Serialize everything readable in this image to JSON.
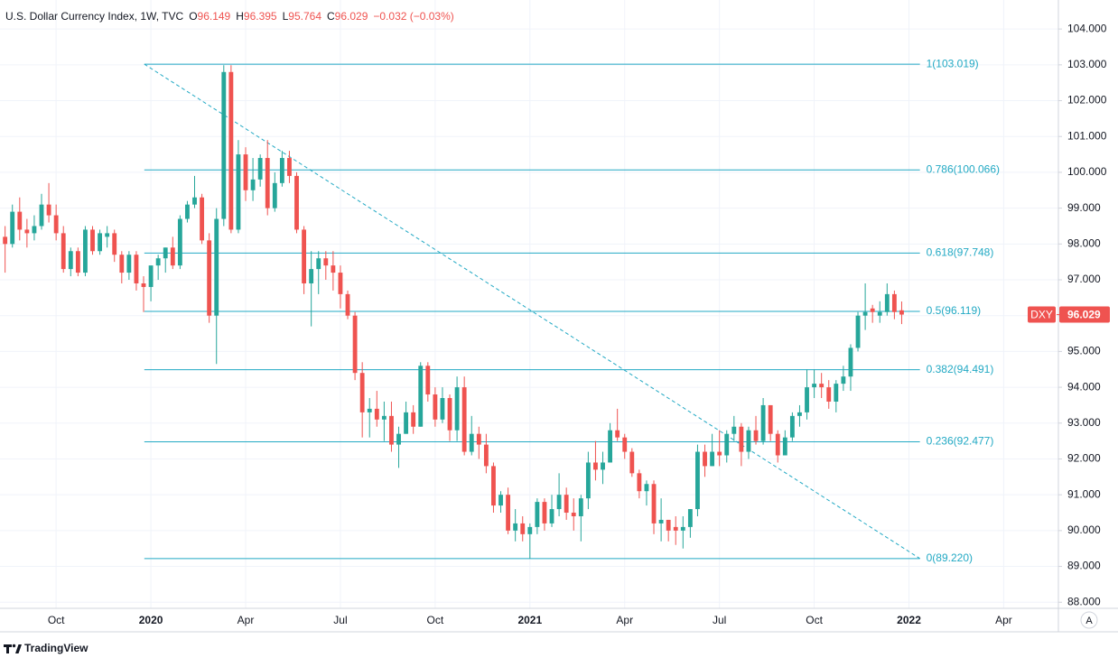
{
  "chart_data": {
    "type": "candlestick",
    "title": "U.S. Dollar Currency Index, 1W, TVC",
    "ohlc_prefixes": [
      "O",
      "H",
      "L",
      "C"
    ],
    "change_label": "−0.032 (−0.03%)",
    "symbol": "DXY",
    "up_color": "#26a69a",
    "down_color": "#ef5350",
    "fib_color": "#22a9c4",
    "grid": true,
    "open": [
      98.2,
      98.0,
      98.9,
      98.4,
      98.3,
      98.5,
      99.1,
      98.8,
      98.3,
      97.3,
      97.8,
      97.2,
      98.4,
      97.8,
      98.2,
      98.3,
      97.7,
      97.2,
      97.7,
      96.9,
      96.8,
      97.4,
      97.6,
      97.9,
      97.4,
      98.7,
      99.1,
      99.3,
      98.1,
      96.0,
      98.7,
      102.8,
      98.4,
      100.5,
      99.5,
      99.8,
      100.4,
      99.0,
      99.7,
      100.4,
      99.9,
      98.4,
      96.9,
      97.3,
      97.6,
      97.4,
      97.2,
      96.6,
      96.0,
      94.4,
      93.3,
      93.4,
      93.1,
      93.2,
      92.4,
      92.7,
      93.3,
      92.9,
      94.6,
      93.8,
      93.1,
      93.7,
      92.8,
      94.0,
      92.2,
      92.7,
      92.4,
      91.8,
      90.7,
      91.0,
      90.0,
      90.2,
      89.9,
      90.1,
      90.8,
      90.2,
      90.6,
      91.0,
      90.5,
      90.4,
      90.9,
      91.9,
      91.7,
      91.9,
      92.8,
      92.6,
      92.2,
      91.6,
      91.1,
      91.3,
      90.2,
      90.3,
      90.1,
      90.0,
      90.1,
      90.6,
      92.2,
      91.8,
      92.2,
      92.1,
      92.7,
      92.9,
      92.2,
      92.8,
      92.5,
      93.5,
      92.7,
      92.1,
      92.6,
      93.2,
      93.3,
      94.0,
      94.1,
      94.0,
      93.6,
      94.1,
      94.3,
      95.1,
      96.0,
      96.2,
      96.0,
      96.1,
      96.6,
      96.149
    ],
    "high": [
      98.5,
      99.1,
      99.3,
      98.7,
      98.8,
      99.4,
      99.7,
      99.1,
      98.5,
      97.9,
      97.9,
      98.5,
      98.5,
      98.4,
      98.5,
      98.4,
      97.8,
      97.8,
      97.8,
      97.1,
      97.4,
      97.7,
      97.9,
      98.2,
      98.8,
      99.2,
      99.9,
      99.4,
      98.3,
      99.0,
      102.99,
      102.99,
      100.9,
      100.7,
      100.4,
      100.5,
      100.9,
      100.0,
      100.6,
      100.6,
      100.0,
      98.5,
      97.8,
      97.8,
      97.8,
      97.8,
      97.4,
      96.7,
      96.1,
      94.7,
      93.7,
      93.9,
      93.6,
      93.6,
      92.9,
      93.6,
      93.5,
      94.7,
      94.7,
      94.0,
      94.0,
      93.8,
      94.3,
      94.3,
      93.2,
      92.9,
      92.7,
      91.9,
      91.1,
      91.2,
      90.6,
      90.4,
      90.2,
      90.9,
      90.9,
      91.0,
      91.6,
      91.2,
      90.9,
      91.0,
      92.2,
      92.5,
      92.2,
      93.0,
      93.4,
      92.7,
      92.3,
      91.7,
      91.4,
      91.4,
      90.9,
      90.3,
      90.4,
      90.4,
      90.6,
      92.4,
      92.4,
      92.7,
      92.8,
      92.8,
      93.2,
      93.0,
      92.9,
      93.2,
      93.7,
      93.5,
      92.8,
      92.8,
      93.3,
      93.5,
      94.5,
      94.5,
      94.4,
      94.2,
      94.2,
      94.6,
      95.2,
      96.1,
      96.9,
      96.3,
      96.4,
      96.9,
      96.7,
      96.395
    ],
    "low": [
      97.2,
      97.9,
      98.1,
      97.9,
      98.1,
      98.4,
      98.6,
      98.1,
      97.2,
      97.1,
      97.1,
      97.1,
      97.7,
      97.7,
      97.9,
      97.5,
      96.9,
      97.0,
      96.7,
      96.1,
      96.4,
      97.0,
      97.2,
      97.3,
      97.3,
      98.6,
      99.0,
      98.0,
      95.8,
      94.65,
      98.5,
      98.3,
      98.3,
      99.2,
      99.2,
      99.6,
      98.8,
      98.9,
      99.6,
      99.7,
      98.3,
      96.6,
      95.7,
      96.6,
      97.0,
      96.7,
      96.2,
      95.9,
      94.2,
      92.6,
      92.6,
      92.9,
      92.5,
      92.2,
      91.75,
      92.7,
      92.7,
      92.9,
      93.6,
      92.9,
      93.0,
      92.5,
      92.5,
      92.1,
      92.1,
      92.0,
      91.6,
      90.5,
      90.5,
      89.9,
      89.7,
      89.7,
      89.22,
      89.9,
      90.0,
      90.1,
      90.4,
      90.3,
      90.0,
      89.7,
      90.6,
      91.4,
      91.3,
      91.9,
      92.5,
      92.0,
      91.5,
      90.9,
      90.7,
      89.9,
      89.7,
      89.7,
      89.6,
      89.5,
      89.8,
      90.4,
      91.5,
      91.8,
      91.8,
      91.9,
      92.5,
      91.8,
      92.0,
      92.4,
      92.4,
      92.5,
      91.9,
      92.1,
      92.5,
      92.9,
      93.1,
      93.7,
      93.7,
      93.4,
      93.3,
      93.9,
      93.9,
      95.0,
      95.6,
      95.8,
      95.8,
      96.0,
      95.9,
      95.764
    ],
    "close": [
      98.0,
      98.9,
      98.4,
      98.3,
      98.5,
      99.1,
      98.8,
      98.3,
      97.3,
      97.8,
      97.2,
      98.4,
      97.8,
      98.3,
      98.3,
      97.7,
      97.2,
      97.7,
      96.9,
      96.8,
      97.4,
      97.6,
      97.9,
      97.4,
      98.7,
      99.1,
      99.3,
      98.1,
      96.0,
      98.7,
      102.8,
      98.4,
      100.5,
      99.5,
      99.8,
      100.4,
      99.0,
      99.7,
      100.4,
      99.9,
      98.4,
      96.9,
      97.3,
      97.6,
      97.4,
      97.2,
      96.6,
      96.0,
      94.4,
      93.3,
      93.4,
      93.1,
      93.2,
      92.4,
      92.7,
      93.3,
      92.9,
      94.6,
      93.8,
      93.1,
      93.7,
      92.8,
      94.0,
      92.2,
      92.7,
      92.4,
      91.8,
      90.7,
      91.0,
      90.0,
      90.2,
      89.9,
      90.1,
      90.8,
      90.2,
      90.6,
      91.0,
      90.5,
      90.4,
      90.9,
      91.9,
      91.7,
      91.9,
      92.8,
      92.6,
      92.2,
      91.6,
      91.1,
      91.3,
      90.2,
      90.3,
      90.0,
      90.0,
      90.1,
      90.6,
      92.2,
      91.8,
      92.2,
      92.1,
      92.7,
      92.9,
      92.2,
      92.8,
      92.5,
      93.5,
      92.7,
      92.1,
      92.6,
      93.2,
      93.3,
      94.0,
      94.1,
      94.0,
      93.6,
      94.1,
      94.3,
      95.1,
      96.0,
      96.1,
      96.1,
      96.1,
      96.6,
      96.1,
      96.029
    ],
    "xlim": [
      -0.7,
      144.5
    ],
    "xticks": [
      {
        "value": 7,
        "label": "Oct"
      },
      {
        "value": 20,
        "label": "2020"
      },
      {
        "value": 33,
        "label": "Apr"
      },
      {
        "value": 46,
        "label": "Jul"
      },
      {
        "value": 59,
        "label": "Oct"
      },
      {
        "value": 72,
        "label": "2021"
      },
      {
        "value": 85,
        "label": "Apr"
      },
      {
        "value": 98,
        "label": "Jul"
      },
      {
        "value": 111,
        "label": "Oct"
      },
      {
        "value": 124,
        "label": "2022"
      },
      {
        "value": 137,
        "label": "Apr"
      }
    ],
    "ylim": [
      87.83,
      104.81
    ],
    "yticks": [
      {
        "value": 88,
        "label": "88.000"
      },
      {
        "value": 89,
        "label": "89.000"
      },
      {
        "value": 90,
        "label": "90.000"
      },
      {
        "value": 91,
        "label": "91.000"
      },
      {
        "value": 92,
        "label": "92.000"
      },
      {
        "value": 93,
        "label": "93.000"
      },
      {
        "value": 94,
        "label": "94.000"
      },
      {
        "value": 95,
        "label": "95.000"
      },
      {
        "value": 96,
        "label": "96.000"
      },
      {
        "value": 97,
        "label": "97.000"
      },
      {
        "value": 98,
        "label": "98.000"
      },
      {
        "value": 99,
        "label": "99.000"
      },
      {
        "value": 100,
        "label": "100.000"
      },
      {
        "value": 101,
        "label": "101.000"
      },
      {
        "value": 102,
        "label": "102.000"
      },
      {
        "value": 103,
        "label": "103.000"
      },
      {
        "value": 104,
        "label": "104.000"
      }
    ],
    "fib_x": [
      19.1,
      125.5
    ],
    "fib_levels": [
      {
        "value": 103.019,
        "label": "1(103.019)"
      },
      {
        "value": 100.066,
        "label": "0.786(100.066)"
      },
      {
        "value": 97.748,
        "label": "0.618(97.748)"
      },
      {
        "value": 96.119,
        "label": "0.5(96.119)"
      },
      {
        "value": 94.491,
        "label": "0.382(94.491)"
      },
      {
        "value": 92.477,
        "label": "0.236(92.477)"
      },
      {
        "value": 89.22,
        "label": "0(89.220)"
      }
    ],
    "button_label": "A",
    "brand": "TradingView"
  }
}
